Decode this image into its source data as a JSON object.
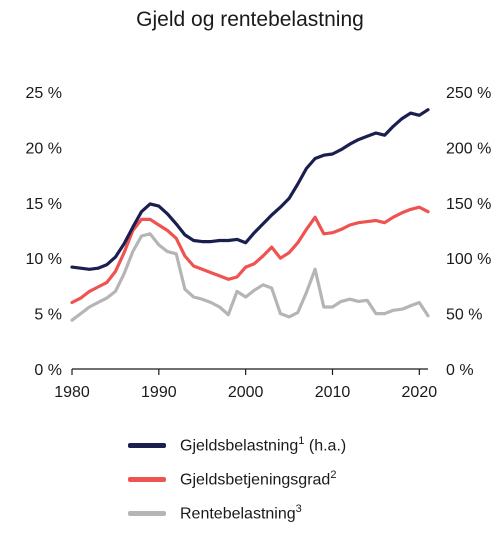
{
  "chart_data": {
    "type": "line",
    "title": "Gjeld og rentebelastning",
    "x_ticks": [
      "1980",
      "1990",
      "2000",
      "2010",
      "2020"
    ],
    "xlim": [
      1980,
      2021
    ],
    "left_axis": {
      "ylim": [
        0,
        25
      ],
      "ticks": [
        "0 %",
        "5 %",
        "10 %",
        "15 %",
        "20 %",
        "25 %"
      ]
    },
    "right_axis": {
      "ylim": [
        0,
        250
      ],
      "ticks": [
        "0 %",
        "50 %",
        "100 %",
        "150 %",
        "200 %",
        "250 %"
      ]
    },
    "grid": false,
    "legend_position": "bottom",
    "series": [
      {
        "name": "Gjeldsbelastning",
        "footnote": "1",
        "suffix": " (h.a.)",
        "axis": "right",
        "color": "#1b1f4f",
        "x": [
          1980,
          1981,
          1982,
          1983,
          1984,
          1985,
          1986,
          1987,
          1988,
          1989,
          1990,
          1991,
          1992,
          1993,
          1994,
          1995,
          1996,
          1997,
          1998,
          1999,
          2000,
          2001,
          2002,
          2003,
          2004,
          2005,
          2006,
          2007,
          2008,
          2009,
          2010,
          2011,
          2012,
          2013,
          2014,
          2015,
          2016,
          2017,
          2018,
          2019,
          2020,
          2021
        ],
        "y": [
          92,
          91,
          90,
          91,
          94,
          101,
          113,
          128,
          142,
          149,
          147,
          140,
          131,
          121,
          116,
          115,
          115,
          116,
          116,
          117,
          114,
          123,
          131,
          139,
          146,
          154,
          167,
          181,
          190,
          193,
          194,
          198,
          203,
          207,
          210,
          213,
          211,
          219,
          226,
          231,
          229,
          234
        ]
      },
      {
        "name": "Gjeldsbetjeningsgrad",
        "footnote": "2",
        "suffix": "",
        "axis": "left",
        "color": "#ef5350",
        "x": [
          1980,
          1981,
          1982,
          1983,
          1984,
          1985,
          1986,
          1987,
          1988,
          1989,
          1990,
          1991,
          1992,
          1993,
          1994,
          1995,
          1996,
          1997,
          1998,
          1999,
          2000,
          2001,
          2002,
          2003,
          2004,
          2005,
          2006,
          2007,
          2008,
          2009,
          2010,
          2011,
          2012,
          2013,
          2014,
          2015,
          2016,
          2017,
          2018,
          2019,
          2020,
          2021
        ],
        "y": [
          6.0,
          6.4,
          7.0,
          7.4,
          7.8,
          8.8,
          10.5,
          12.5,
          13.5,
          13.5,
          13.0,
          12.5,
          11.8,
          10.2,
          9.3,
          9.0,
          8.7,
          8.4,
          8.1,
          8.3,
          9.2,
          9.5,
          10.2,
          11.0,
          10.0,
          10.5,
          11.4,
          12.6,
          13.7,
          12.2,
          12.3,
          12.6,
          13.0,
          13.2,
          13.3,
          13.4,
          13.2,
          13.7,
          14.1,
          14.4,
          14.6,
          14.2
        ]
      },
      {
        "name": "Rentebelastning",
        "footnote": "3",
        "suffix": "",
        "axis": "left",
        "color": "#b5b5b5",
        "x": [
          1980,
          1981,
          1982,
          1983,
          1984,
          1985,
          1986,
          1987,
          1988,
          1989,
          1990,
          1991,
          1992,
          1993,
          1994,
          1995,
          1996,
          1997,
          1998,
          1999,
          2000,
          2001,
          2002,
          2003,
          2004,
          2005,
          2006,
          2007,
          2008,
          2009,
          2010,
          2011,
          2012,
          2013,
          2014,
          2015,
          2016,
          2017,
          2018,
          2019,
          2020,
          2021
        ],
        "y": [
          4.4,
          5.0,
          5.6,
          6.0,
          6.4,
          7.0,
          8.6,
          10.6,
          12.0,
          12.2,
          11.2,
          10.6,
          10.4,
          7.2,
          6.5,
          6.3,
          6.0,
          5.6,
          4.9,
          7.0,
          6.5,
          7.1,
          7.6,
          7.3,
          5.0,
          4.7,
          5.1,
          6.9,
          9.0,
          5.6,
          5.6,
          6.1,
          6.3,
          6.1,
          6.2,
          5.0,
          5.0,
          5.3,
          5.4,
          5.7,
          6.0,
          4.8
        ]
      }
    ]
  }
}
